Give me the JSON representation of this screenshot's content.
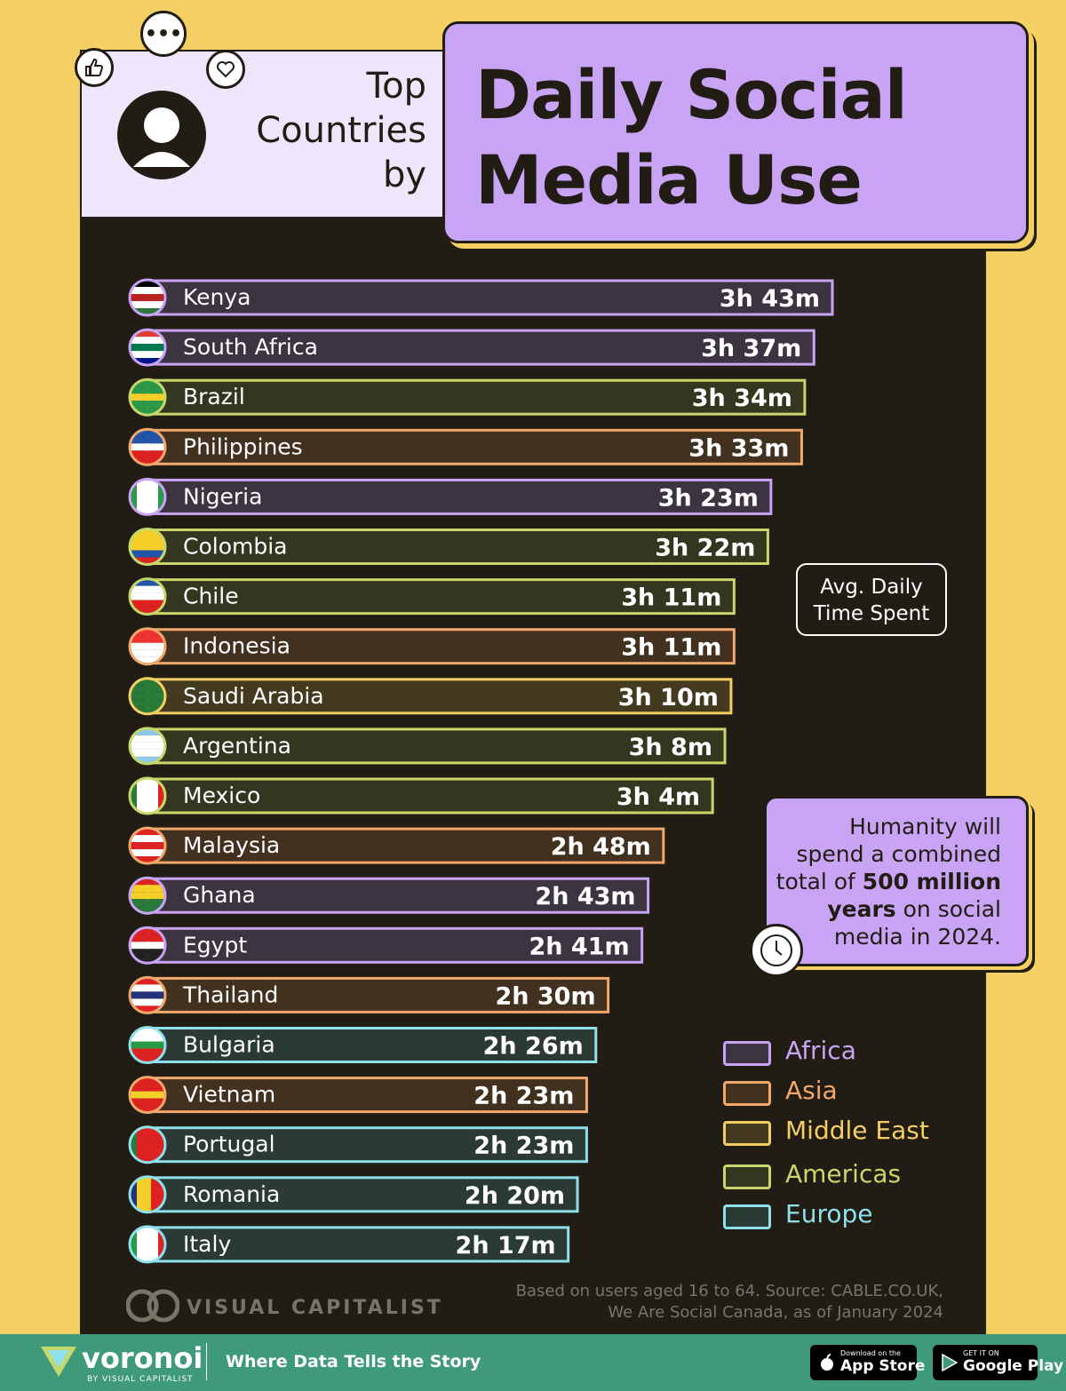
{
  "header": {
    "subtitle_lines": [
      "Top",
      "Countries",
      "by"
    ],
    "title_lines": [
      "Daily Social",
      "Media Use"
    ]
  },
  "colors": {
    "Africa": "#c9a4f5",
    "Asia": "#f2a86a",
    "Middle East": "#f4cf63",
    "Americas": "#c6d86a",
    "Europe": "#8ee0ea",
    "background": "#f4cf63",
    "panel": "#211d15"
  },
  "callout": {
    "line1": "Avg. Daily",
    "line2": "Time Spent"
  },
  "fact": {
    "line1": "Humanity will",
    "line2": "spend a combined",
    "line3_pre": "total of ",
    "line3_bold": "500 million",
    "line4_bold": "years",
    "line4_post": " on social",
    "line5": "media in 2024."
  },
  "chart_data": {
    "type": "bar",
    "orientation": "horizontal",
    "unit": "minutes per day",
    "categories": [
      "Kenya",
      "South Africa",
      "Brazil",
      "Philippines",
      "Nigeria",
      "Colombia",
      "Chile",
      "Indonesia",
      "Saudi Arabia",
      "Argentina",
      "Mexico",
      "Malaysia",
      "Ghana",
      "Egypt",
      "Thailand",
      "Bulgaria",
      "Vietnam",
      "Portugal",
      "Romania",
      "Italy"
    ],
    "values": [
      223,
      217,
      214,
      213,
      203,
      202,
      191,
      191,
      190,
      188,
      184,
      168,
      163,
      161,
      150,
      146,
      143,
      143,
      140,
      137
    ],
    "labels": [
      "3h 43m",
      "3h 37m",
      "3h 34m",
      "3h 33m",
      "3h 23m",
      "3h 22m",
      "3h 11m",
      "3h 11m",
      "3h 10m",
      "3h 8m",
      "3h 4m",
      "2h 48m",
      "2h 43m",
      "2h 41m",
      "2h 30m",
      "2h 26m",
      "2h 23m",
      "2h 23m",
      "2h 20m",
      "2h 17m"
    ],
    "regions": [
      "Africa",
      "Africa",
      "Americas",
      "Asia",
      "Africa",
      "Americas",
      "Americas",
      "Asia",
      "Middle East",
      "Americas",
      "Americas",
      "Asia",
      "Africa",
      "Africa",
      "Asia",
      "Europe",
      "Asia",
      "Europe",
      "Europe",
      "Europe"
    ],
    "flags": [
      "kenya-flag",
      "south-africa-flag",
      "brazil-flag",
      "philippines-flag",
      "nigeria-flag",
      "colombia-flag",
      "chile-flag",
      "indonesia-flag",
      "saudi-arabia-flag",
      "argentina-flag",
      "mexico-flag",
      "malaysia-flag",
      "ghana-flag",
      "egypt-flag",
      "thailand-flag",
      "bulgaria-flag",
      "vietnam-flag",
      "portugal-flag",
      "romania-flag",
      "italy-flag"
    ],
    "legend": [
      "Africa",
      "Asia",
      "Middle East",
      "Americas",
      "Europe"
    ],
    "legend_placement": "bottom-right"
  },
  "source": {
    "line1": "Based on users aged 16 to 64. Source: CABLE.CO.UK,",
    "line2": "We Are Social Canada, as of January 2024"
  },
  "branding": {
    "vc_name": "VISUAL CAPITALIST",
    "voronoi": "voronoi",
    "voronoi_sub": "BY VISUAL CAPITALIST",
    "tagline": "Where Data Tells the Story",
    "appstore_small": "Download on the",
    "appstore_big": "App Store",
    "googleplay_small": "GET IT ON",
    "googleplay_big": "Google Play"
  }
}
